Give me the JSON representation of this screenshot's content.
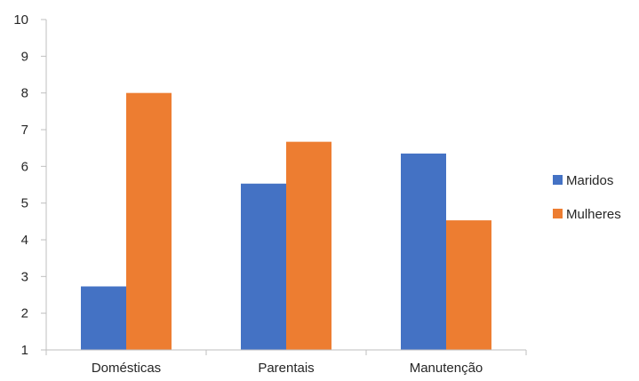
{
  "chart_data": {
    "type": "bar",
    "title": "",
    "xlabel": "",
    "ylabel": "",
    "categories": [
      "Domésticas",
      "Parentais",
      "Manutenção"
    ],
    "series": [
      {
        "name": "Maridos",
        "values": [
          2.73,
          5.53,
          6.35
        ],
        "color": "#4472C4"
      },
      {
        "name": "Mulheres",
        "values": [
          8.0,
          6.67,
          4.53
        ],
        "color": "#ED7D31"
      }
    ],
    "ylim": [
      1,
      10
    ],
    "yticks": [
      "1",
      "2",
      "3",
      "4",
      "5",
      "6",
      "7",
      "8",
      "9",
      "10"
    ],
    "grid": false,
    "legend_position": "right"
  }
}
